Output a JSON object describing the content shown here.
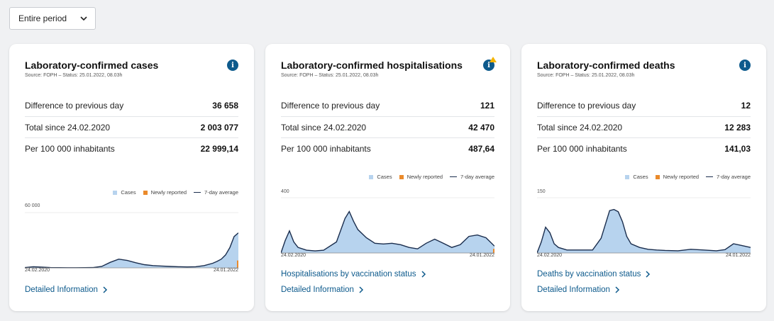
{
  "period_select": {
    "value": "Entire period"
  },
  "legend": {
    "cases": "Cases",
    "new": "Newly reported",
    "avg": "7-day average"
  },
  "colors": {
    "cases_fill": "#b7d3ee",
    "newly_reported": "#ea8a2b",
    "average_line": "#1a2d4d",
    "link": "#0d5a8c",
    "info": "#0d5a8c",
    "warning": "#f5b400"
  },
  "cards": [
    {
      "title": "Laboratory-confirmed cases",
      "source": "Source: FOPH – Status: 25.01.2022, 08.03h",
      "stats": [
        {
          "label": "Difference to previous day",
          "value": "36 658"
        },
        {
          "label": "Total since 24.02.2020",
          "value": "2 003 077"
        },
        {
          "label": "Per 100 000 inhabitants",
          "value": "22 999,14"
        }
      ],
      "ymax": "60 000",
      "date_start": "24.02.2020",
      "date_end": "24.01.2022",
      "links": [
        "Detailed Information"
      ],
      "warning": false
    },
    {
      "title": "Laboratory-confirmed hospitalisations",
      "source": "Source: FOPH – Status: 25.01.2022, 08.03h",
      "stats": [
        {
          "label": "Difference to previous day",
          "value": "121"
        },
        {
          "label": "Total since 24.02.2020",
          "value": "42 470"
        },
        {
          "label": "Per 100 000 inhabitants",
          "value": "487,64"
        }
      ],
      "ymax": "400",
      "date_start": "24.02.2020",
      "date_end": "24.01.2022",
      "links": [
        "Hospitalisations by vaccination status",
        "Detailed Information"
      ],
      "warning": true
    },
    {
      "title": "Laboratory-confirmed deaths",
      "source": "Source: FOPH – Status: 25.01.2022, 08.03h",
      "stats": [
        {
          "label": "Difference to previous day",
          "value": "12"
        },
        {
          "label": "Total since 24.02.2020",
          "value": "12 283"
        },
        {
          "label": "Per 100 000 inhabitants",
          "value": "141,03"
        }
      ],
      "ymax": "150",
      "date_start": "24.02.2020",
      "date_end": "24.01.2022",
      "links": [
        "Deaths by vaccination status",
        "Detailed Information"
      ],
      "warning": false
    }
  ],
  "chart_data": [
    {
      "type": "area",
      "series": [
        {
          "name": "7-day average",
          "x_frac": [
            0,
            0.04,
            0.08,
            0.12,
            0.16,
            0.2,
            0.24,
            0.28,
            0.32,
            0.36,
            0.4,
            0.44,
            0.48,
            0.52,
            0.56,
            0.6,
            0.64,
            0.68,
            0.72,
            0.76,
            0.8,
            0.84,
            0.88,
            0.9,
            0.92,
            0.94,
            0.96,
            0.98,
            1.0
          ],
          "values": [
            300,
            1200,
            800,
            300,
            200,
            150,
            150,
            200,
            300,
            1500,
            6000,
            9500,
            8000,
            5500,
            3500,
            2500,
            2000,
            1500,
            1200,
            1000,
            1200,
            2500,
            5000,
            7000,
            9500,
            14000,
            22000,
            34000,
            38000
          ]
        },
        {
          "name": "Newly reported",
          "x_frac": [
            1.0
          ],
          "values": [
            8000
          ]
        }
      ],
      "ylim": [
        0,
        60000
      ]
    },
    {
      "type": "area",
      "series": [
        {
          "name": "7-day average",
          "x_frac": [
            0,
            0.02,
            0.04,
            0.06,
            0.08,
            0.12,
            0.16,
            0.2,
            0.26,
            0.3,
            0.32,
            0.34,
            0.36,
            0.4,
            0.44,
            0.48,
            0.52,
            0.56,
            0.6,
            0.64,
            0.68,
            0.72,
            0.76,
            0.8,
            0.84,
            0.88,
            0.92,
            0.96,
            1.0
          ],
          "values": [
            0,
            90,
            160,
            80,
            40,
            20,
            15,
            20,
            80,
            250,
            300,
            230,
            170,
            110,
            70,
            65,
            70,
            60,
            40,
            30,
            70,
            100,
            70,
            40,
            60,
            120,
            130,
            110,
            50
          ]
        },
        {
          "name": "Newly reported",
          "x_frac": [
            1.0
          ],
          "values": [
            30
          ]
        }
      ],
      "ylim": [
        0,
        400
      ]
    },
    {
      "type": "area",
      "series": [
        {
          "name": "7-day average",
          "x_frac": [
            0,
            0.02,
            0.04,
            0.06,
            0.08,
            0.1,
            0.14,
            0.2,
            0.26,
            0.3,
            0.34,
            0.36,
            0.38,
            0.4,
            0.42,
            0.44,
            0.48,
            0.52,
            0.56,
            0.6,
            0.66,
            0.72,
            0.78,
            0.84,
            0.88,
            0.92,
            0.96,
            1.0
          ],
          "values": [
            0,
            30,
            70,
            55,
            25,
            15,
            8,
            8,
            8,
            40,
            115,
            118,
            112,
            85,
            45,
            25,
            15,
            10,
            8,
            7,
            6,
            10,
            8,
            6,
            9,
            25,
            20,
            15
          ]
        }
      ],
      "ylim": [
        0,
        150
      ]
    }
  ]
}
